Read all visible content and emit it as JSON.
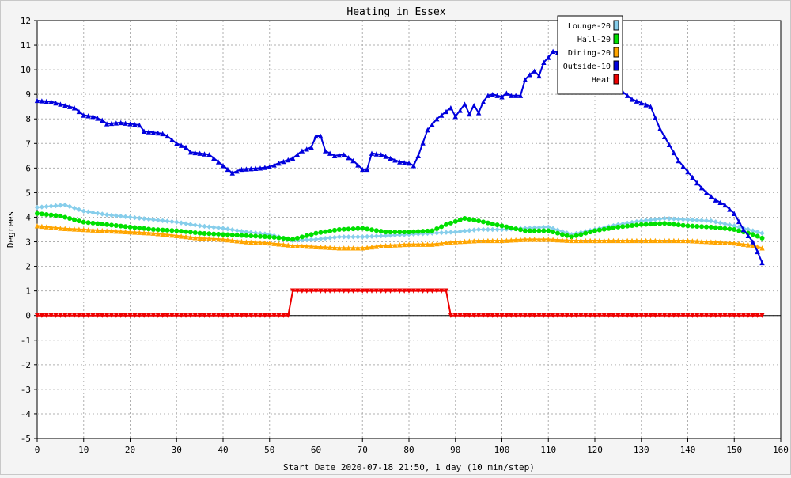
{
  "chart_data": {
    "type": "line",
    "title": "Heating in Essex",
    "xlabel": "Start Date 2020-07-18 21:50, 1 day (10 min/step)",
    "ylabel": "Degrees",
    "xlim": [
      0,
      160
    ],
    "ylim": [
      -5,
      12
    ],
    "x_ticks": [
      0,
      10,
      20,
      30,
      40,
      50,
      60,
      70,
      80,
      90,
      100,
      110,
      120,
      130,
      140,
      150,
      160
    ],
    "y_ticks": [
      -5,
      -4,
      -3,
      -2,
      -1,
      0,
      1,
      2,
      3,
      4,
      5,
      6,
      7,
      8,
      9,
      10,
      11,
      12
    ],
    "grid": true,
    "legend_position": "top-right",
    "series": [
      {
        "name": "Lounge-20",
        "color": "#87ceeb",
        "marker": "diamond",
        "points": [
          [
            0,
            4.4
          ],
          [
            3,
            4.45
          ],
          [
            6,
            4.5
          ],
          [
            10,
            4.25
          ],
          [
            15,
            4.1
          ],
          [
            20,
            4.0
          ],
          [
            25,
            3.9
          ],
          [
            30,
            3.8
          ],
          [
            35,
            3.65
          ],
          [
            40,
            3.55
          ],
          [
            45,
            3.4
          ],
          [
            50,
            3.3
          ],
          [
            55,
            3.05
          ],
          [
            60,
            3.1
          ],
          [
            65,
            3.2
          ],
          [
            70,
            3.2
          ],
          [
            75,
            3.25
          ],
          [
            80,
            3.3
          ],
          [
            85,
            3.35
          ],
          [
            90,
            3.4
          ],
          [
            95,
            3.5
          ],
          [
            100,
            3.5
          ],
          [
            105,
            3.55
          ],
          [
            110,
            3.6
          ],
          [
            115,
            3.3
          ],
          [
            120,
            3.5
          ],
          [
            125,
            3.7
          ],
          [
            130,
            3.85
          ],
          [
            135,
            3.95
          ],
          [
            140,
            3.9
          ],
          [
            145,
            3.85
          ],
          [
            150,
            3.65
          ],
          [
            154,
            3.45
          ],
          [
            156,
            3.35
          ]
        ]
      },
      {
        "name": "Hall-20",
        "color": "#00e000",
        "marker": "circle",
        "points": [
          [
            0,
            4.15
          ],
          [
            5,
            4.05
          ],
          [
            10,
            3.8
          ],
          [
            15,
            3.7
          ],
          [
            20,
            3.6
          ],
          [
            25,
            3.5
          ],
          [
            30,
            3.45
          ],
          [
            35,
            3.35
          ],
          [
            40,
            3.3
          ],
          [
            45,
            3.25
          ],
          [
            50,
            3.2
          ],
          [
            55,
            3.1
          ],
          [
            60,
            3.35
          ],
          [
            65,
            3.5
          ],
          [
            70,
            3.55
          ],
          [
            75,
            3.4
          ],
          [
            80,
            3.4
          ],
          [
            85,
            3.45
          ],
          [
            88,
            3.7
          ],
          [
            92,
            3.95
          ],
          [
            95,
            3.85
          ],
          [
            100,
            3.65
          ],
          [
            105,
            3.45
          ],
          [
            110,
            3.45
          ],
          [
            115,
            3.2
          ],
          [
            120,
            3.45
          ],
          [
            125,
            3.6
          ],
          [
            130,
            3.7
          ],
          [
            135,
            3.75
          ],
          [
            140,
            3.65
          ],
          [
            145,
            3.6
          ],
          [
            150,
            3.5
          ],
          [
            154,
            3.3
          ],
          [
            156,
            3.15
          ]
        ]
      },
      {
        "name": "Dining-20",
        "color": "#ffa500",
        "marker": "triangle-up",
        "points": [
          [
            0,
            3.65
          ],
          [
            5,
            3.55
          ],
          [
            10,
            3.5
          ],
          [
            15,
            3.45
          ],
          [
            20,
            3.4
          ],
          [
            25,
            3.35
          ],
          [
            30,
            3.25
          ],
          [
            35,
            3.15
          ],
          [
            40,
            3.1
          ],
          [
            45,
            3.0
          ],
          [
            50,
            2.95
          ],
          [
            55,
            2.85
          ],
          [
            60,
            2.8
          ],
          [
            65,
            2.75
          ],
          [
            70,
            2.75
          ],
          [
            75,
            2.85
          ],
          [
            80,
            2.9
          ],
          [
            85,
            2.9
          ],
          [
            90,
            3.0
          ],
          [
            95,
            3.05
          ],
          [
            100,
            3.05
          ],
          [
            105,
            3.1
          ],
          [
            110,
            3.1
          ],
          [
            115,
            3.05
          ],
          [
            120,
            3.05
          ],
          [
            125,
            3.05
          ],
          [
            130,
            3.05
          ],
          [
            135,
            3.05
          ],
          [
            140,
            3.05
          ],
          [
            145,
            3.0
          ],
          [
            150,
            2.95
          ],
          [
            154,
            2.85
          ],
          [
            156,
            2.75
          ]
        ]
      },
      {
        "name": "Outside-10",
        "color": "#0000dd",
        "marker": "triangle-up",
        "points": [
          [
            0,
            8.75
          ],
          [
            3,
            8.7
          ],
          [
            5,
            8.6
          ],
          [
            8,
            8.45
          ],
          [
            10,
            8.15
          ],
          [
            12,
            8.1
          ],
          [
            14,
            7.95
          ],
          [
            15,
            7.8
          ],
          [
            18,
            7.85
          ],
          [
            20,
            7.8
          ],
          [
            22,
            7.75
          ],
          [
            23,
            7.5
          ],
          [
            25,
            7.45
          ],
          [
            27,
            7.4
          ],
          [
            28,
            7.3
          ],
          [
            30,
            7.0
          ],
          [
            32,
            6.85
          ],
          [
            33,
            6.65
          ],
          [
            35,
            6.6
          ],
          [
            37,
            6.55
          ],
          [
            40,
            6.1
          ],
          [
            42,
            5.8
          ],
          [
            44,
            5.95
          ],
          [
            48,
            6.0
          ],
          [
            50,
            6.05
          ],
          [
            52,
            6.2
          ],
          [
            55,
            6.4
          ],
          [
            57,
            6.7
          ],
          [
            59,
            6.85
          ],
          [
            60,
            7.3
          ],
          [
            61,
            7.3
          ],
          [
            62,
            6.7
          ],
          [
            64,
            6.5
          ],
          [
            66,
            6.55
          ],
          [
            68,
            6.3
          ],
          [
            70,
            5.95
          ],
          [
            71,
            5.95
          ],
          [
            72,
            6.6
          ],
          [
            74,
            6.55
          ],
          [
            76,
            6.4
          ],
          [
            78,
            6.25
          ],
          [
            80,
            6.2
          ],
          [
            81,
            6.1
          ],
          [
            82,
            6.5
          ],
          [
            84,
            7.55
          ],
          [
            86,
            8.0
          ],
          [
            88,
            8.3
          ],
          [
            89,
            8.45
          ],
          [
            90,
            8.1
          ],
          [
            91,
            8.35
          ],
          [
            92,
            8.6
          ],
          [
            93,
            8.2
          ],
          [
            94,
            8.55
          ],
          [
            95,
            8.25
          ],
          [
            96,
            8.7
          ],
          [
            97,
            8.95
          ],
          [
            98,
            9.0
          ],
          [
            100,
            8.9
          ],
          [
            101,
            9.05
          ],
          [
            102,
            8.95
          ],
          [
            104,
            8.95
          ],
          [
            105,
            9.6
          ],
          [
            106,
            9.8
          ],
          [
            107,
            9.95
          ],
          [
            108,
            9.75
          ],
          [
            109,
            10.3
          ],
          [
            110,
            10.5
          ],
          [
            111,
            10.75
          ],
          [
            112,
            10.7
          ],
          [
            113,
            10.1
          ],
          [
            116,
            9.6
          ],
          [
            118,
            9.4
          ],
          [
            120,
            9.3
          ],
          [
            122,
            9.15
          ],
          [
            124,
            9.1
          ],
          [
            126,
            9.1
          ],
          [
            128,
            8.8
          ],
          [
            130,
            8.65
          ],
          [
            132,
            8.5
          ],
          [
            134,
            7.6
          ],
          [
            136,
            6.95
          ],
          [
            138,
            6.3
          ],
          [
            140,
            5.85
          ],
          [
            142,
            5.4
          ],
          [
            144,
            5.0
          ],
          [
            146,
            4.7
          ],
          [
            148,
            4.5
          ],
          [
            150,
            4.15
          ],
          [
            152,
            3.5
          ],
          [
            154,
            3.0
          ],
          [
            155,
            2.6
          ],
          [
            156,
            2.15
          ]
        ]
      },
      {
        "name": "Heat",
        "color": "#ee0000",
        "marker": "triangle-down",
        "points": [
          [
            0,
            0
          ],
          [
            54,
            0
          ],
          [
            55,
            1
          ],
          [
            88,
            1
          ],
          [
            89,
            0
          ],
          [
            156,
            0
          ]
        ]
      }
    ]
  }
}
